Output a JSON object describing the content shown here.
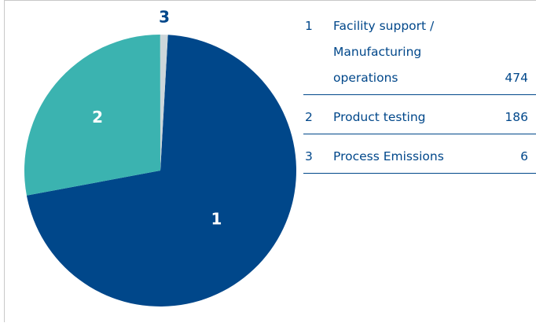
{
  "chart_data": {
    "type": "pie",
    "keys": [
      "1",
      "2",
      "3"
    ],
    "categories": [
      "Facility support / Manufacturing operations",
      "Product testing",
      "Process Emissions"
    ],
    "values": [
      474,
      186,
      6
    ],
    "colors": [
      "#00478a",
      "#3bb3b0",
      "#ccd6da"
    ]
  }
}
